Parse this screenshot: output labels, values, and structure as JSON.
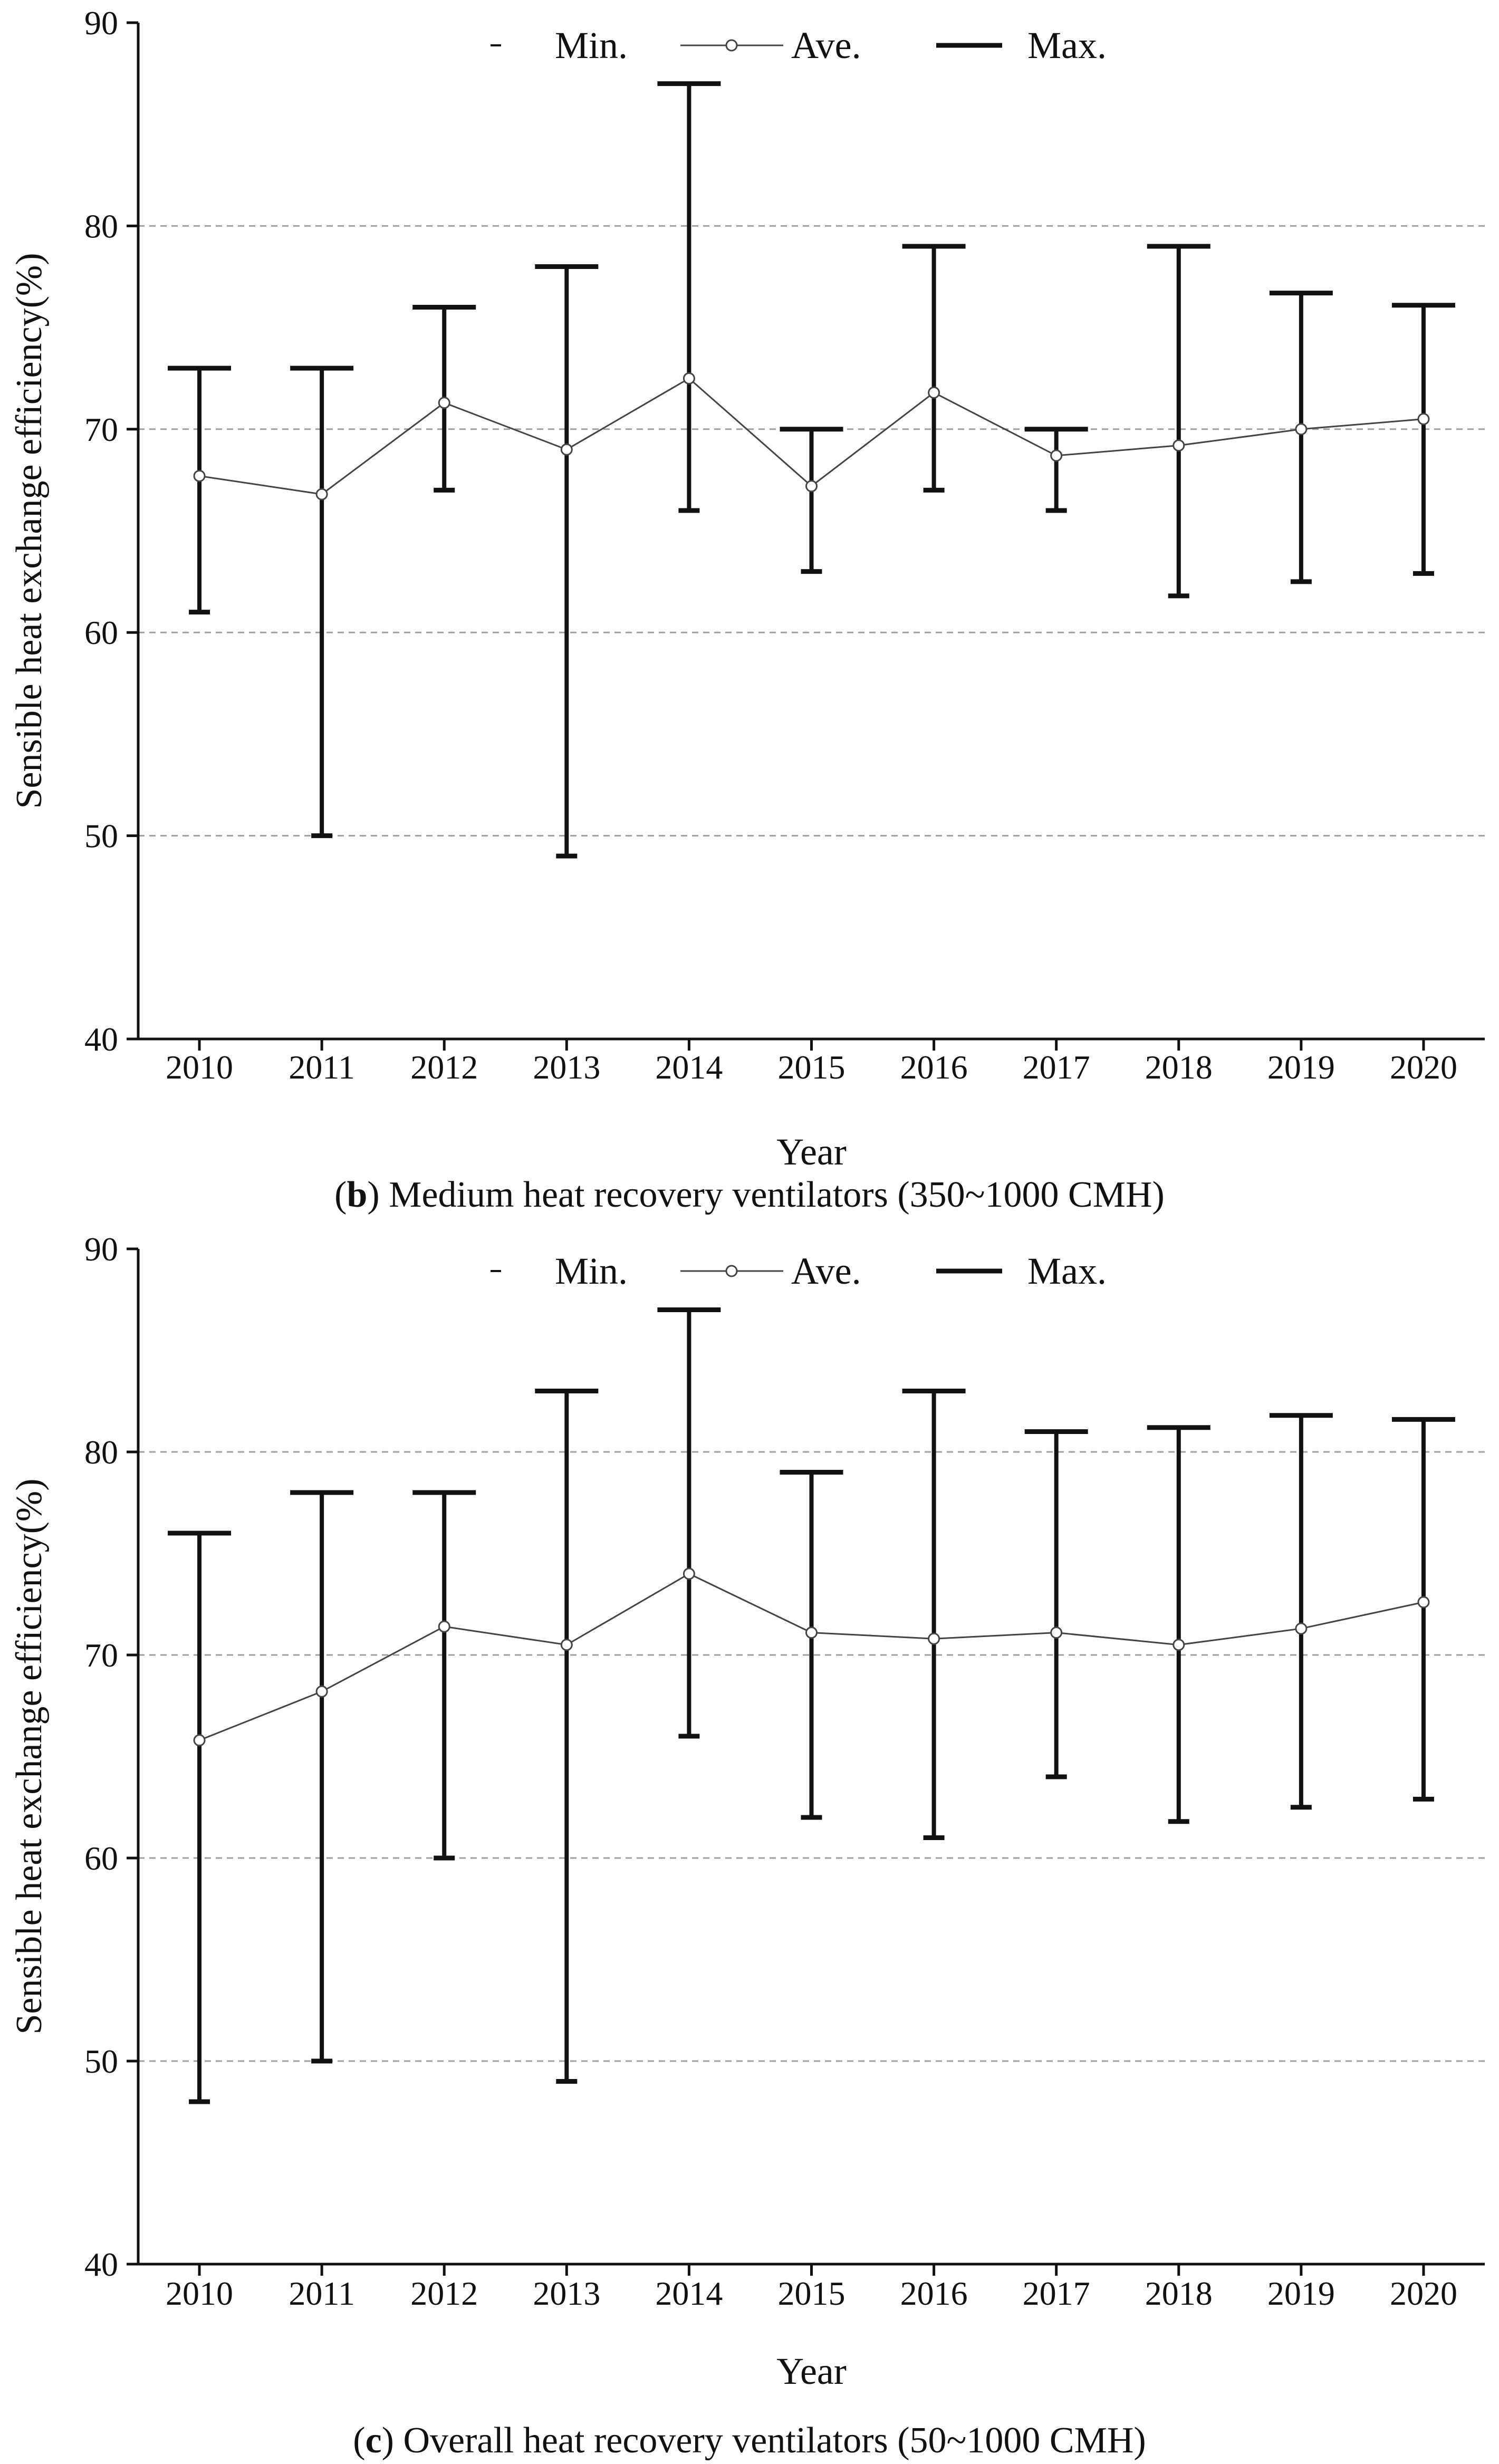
{
  "chart_data": [
    {
      "type": "errorbar-line",
      "panel_letter": "b",
      "caption_open": "(",
      "caption_close": ")",
      "caption_text": " Medium heat recovery ventilators (350~1000 CMH)",
      "xlabel": "Year",
      "ylabel": "Sensible heat exchange efficiency(%)",
      "ylim": [
        40,
        90
      ],
      "yticks": [
        40,
        50,
        60,
        70,
        80,
        90
      ],
      "gridlines": [
        50,
        60,
        70,
        80
      ],
      "categories": [
        "2010",
        "2011",
        "2012",
        "2013",
        "2014",
        "2015",
        "2016",
        "2017",
        "2018",
        "2019",
        "2020"
      ],
      "legend": {
        "min": "Min.",
        "ave": "Ave.",
        "max": "Max.",
        "position": "top"
      },
      "series": [
        {
          "name": "Min.",
          "values": [
            61,
            50,
            67,
            49,
            66,
            63,
            67,
            66,
            61.8,
            62.5,
            62.9
          ]
        },
        {
          "name": "Ave.",
          "values": [
            67.7,
            66.8,
            71.3,
            69.0,
            72.5,
            67.2,
            71.8,
            68.7,
            69.2,
            70.0,
            70.5
          ]
        },
        {
          "name": "Max.",
          "values": [
            73,
            73,
            76,
            78,
            87,
            70,
            79,
            70,
            79,
            76.7,
            76.1
          ]
        }
      ]
    },
    {
      "type": "errorbar-line",
      "panel_letter": "c",
      "caption_open": "(",
      "caption_close": ")",
      "caption_text": " Overall heat recovery ventilators (50~1000 CMH)",
      "xlabel": "Year",
      "ylabel": "Sensible heat exchange efficiency(%)",
      "ylim": [
        40,
        90
      ],
      "yticks": [
        40,
        50,
        60,
        70,
        80,
        90
      ],
      "gridlines": [
        50,
        60,
        70,
        80
      ],
      "categories": [
        "2010",
        "2011",
        "2012",
        "2013",
        "2014",
        "2015",
        "2016",
        "2017",
        "2018",
        "2019",
        "2020"
      ],
      "legend": {
        "min": "Min.",
        "ave": "Ave.",
        "max": "Max.",
        "position": "top"
      },
      "series": [
        {
          "name": "Min.",
          "values": [
            48,
            50,
            60,
            49,
            66,
            62,
            61,
            64,
            61.8,
            62.5,
            62.9
          ]
        },
        {
          "name": "Ave.",
          "values": [
            65.8,
            68.2,
            71.4,
            70.5,
            74.0,
            71.1,
            70.8,
            71.1,
            70.5,
            71.3,
            72.6
          ]
        },
        {
          "name": "Max.",
          "values": [
            76,
            78,
            78,
            83,
            87,
            79,
            83,
            81,
            81.2,
            81.8,
            81.6
          ]
        }
      ]
    }
  ],
  "colors": {
    "line": "#111111",
    "grid": "#a0a0a0",
    "marker_fill": "#ffffff"
  }
}
